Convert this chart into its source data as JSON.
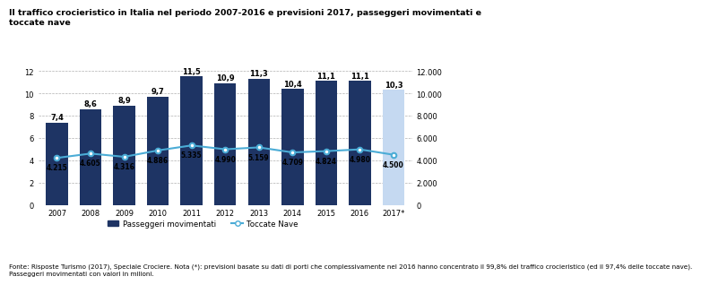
{
  "title": "Il traffico crocieristico in Italia nel periodo 2007-2016 e previsioni 2017, passeggeri movimentati e\ntoccate nave",
  "years": [
    "2007",
    "2008",
    "2009",
    "2010",
    "2011",
    "2012",
    "2013",
    "2014",
    "2015",
    "2016",
    "2017*"
  ],
  "passengers": [
    7.4,
    8.6,
    8.9,
    9.7,
    11.5,
    10.9,
    11.3,
    10.4,
    11.1,
    11.1,
    10.3
  ],
  "toccate": [
    4215,
    4605,
    4316,
    4886,
    5335,
    4990,
    5159,
    4709,
    4824,
    4980,
    4500
  ],
  "toccate_labels": [
    "4.215",
    "4.605",
    "4.316",
    "4.886",
    "5.335",
    "4.990",
    "5.159",
    "4.709",
    "4.824",
    "4.980",
    "4.500"
  ],
  "bar_color_main": "#1e3464",
  "bar_color_last": "#c5d9f1",
  "line_color": "#4bacd6",
  "ylim_left": [
    0,
    12
  ],
  "ylim_right": [
    0,
    12000
  ],
  "yticks_left": [
    0,
    2,
    4,
    6,
    8,
    10,
    12
  ],
  "yticks_right": [
    0,
    2000,
    4000,
    6000,
    8000,
    10000,
    12000
  ],
  "ytick_labels_right": [
    "0",
    "2.000",
    "4.000",
    "6.000",
    "8.000",
    "10.000",
    "12.000"
  ],
  "legend_bar_label": "Passeggeri movimentati",
  "legend_line_label": "Toccate Nave",
  "footnote_line1": "Fonte: Risposte Turismo (2017), Speciale Crociere. Nota (*): previsioni basate su dati di porti che complessivamente nel 2016 hanno concentrato il 99,8% del traffico crocieristico (ed il 97,4% delle toccate nave).",
  "footnote_line2": "Passeggeri movimentati con valori in milioni.",
  "title_fontsize": 6.8,
  "axis_fontsize": 6.0,
  "bar_label_fontsize": 6.0,
  "toccate_label_fontsize": 5.5,
  "footnote_fontsize": 5.2,
  "legend_fontsize": 6.2,
  "background_color": "#ffffff",
  "grid_color": "#b0b0b0"
}
